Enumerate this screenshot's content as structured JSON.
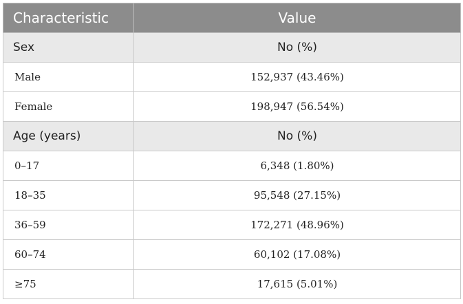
{
  "header": {
    "characteristic": "Characteristic",
    "value": "Value"
  },
  "sections": [
    {
      "label": "Sex",
      "value_header": "No (%)",
      "rows": [
        {
          "label": "Male",
          "value": "152,937 (43.46%)"
        },
        {
          "label": "Female",
          "value": "198,947 (56.54%)"
        }
      ]
    },
    {
      "label": "Age (years)",
      "value_header": "No (%)",
      "rows": [
        {
          "label": "0–17",
          "value": "6,348 (1.80%)"
        },
        {
          "label": "18–35",
          "value": "95,548 (27.15%)"
        },
        {
          "label": "36–59",
          "value": "172,271 (48.96%)"
        },
        {
          "label": "60–74",
          "value": "60,102 (17.08%)"
        },
        {
          "label": "≥75",
          "value": "17,615 (5.01%)"
        }
      ]
    }
  ]
}
